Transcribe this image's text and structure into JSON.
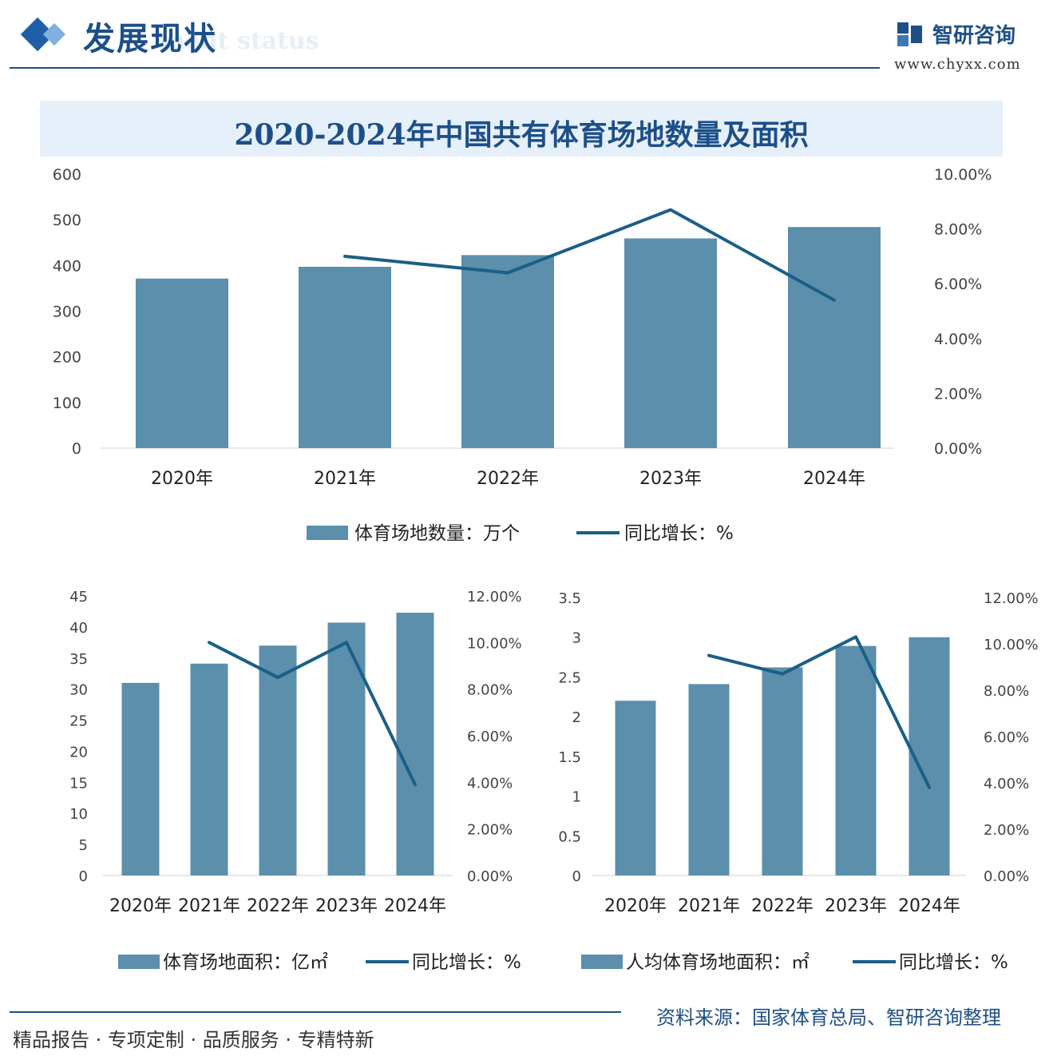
{
  "header": {
    "title": "发展现状",
    "subtitle_watermark": "ment status",
    "logo_name": "智研咨询",
    "logo_url": "www.chyxx.com"
  },
  "main_title": "2020-2024年中国共有体育场地数量及面积",
  "colors": {
    "bar": "#5b8fac",
    "line": "#1a5f87",
    "accent": "#1e4f86"
  },
  "chart_data": [
    {
      "type": "bar",
      "categories": [
        "2020年",
        "2021年",
        "2022年",
        "2023年",
        "2024年"
      ],
      "series": [
        {
          "name": "体育场地数量：万个",
          "type": "bar",
          "axis": "left",
          "values": [
            371.3,
            397.1,
            422.7,
            459.3,
            484.2
          ]
        },
        {
          "name": "同比增长：%",
          "type": "line",
          "axis": "right",
          "values": [
            null,
            7.0,
            6.4,
            8.7,
            5.4
          ]
        }
      ],
      "yleft": {
        "ticks": [
          "0",
          "100",
          "200",
          "300",
          "400",
          "500",
          "600"
        ],
        "min": 0,
        "max": 600
      },
      "yright": {
        "ticks": [
          "0.00%",
          "2.00%",
          "4.00%",
          "6.00%",
          "8.00%",
          "10.00%"
        ],
        "min": 0,
        "max": 10
      }
    },
    {
      "type": "bar",
      "categories": [
        "2020年",
        "2021年",
        "2022年",
        "2023年",
        "2024年"
      ],
      "series": [
        {
          "name": "体育场地面积：亿㎡",
          "type": "bar",
          "axis": "left",
          "values": [
            31.0,
            34.1,
            37.0,
            40.7,
            42.3
          ]
        },
        {
          "name": "同比增长：%",
          "type": "line",
          "axis": "right",
          "values": [
            null,
            10.0,
            8.5,
            10.0,
            3.9
          ]
        }
      ],
      "yleft": {
        "ticks": [
          "0",
          "5",
          "10",
          "15",
          "20",
          "25",
          "30",
          "35",
          "40",
          "45"
        ],
        "min": 0,
        "max": 45
      },
      "yright": {
        "ticks": [
          "0.00%",
          "2.00%",
          "4.00%",
          "6.00%",
          "8.00%",
          "10.00%",
          "12.00%"
        ],
        "min": 0,
        "max": 12
      }
    },
    {
      "type": "bar",
      "categories": [
        "2020年",
        "2021年",
        "2022年",
        "2023年",
        "2024年"
      ],
      "series": [
        {
          "name": "人均体育场地面积：㎡",
          "type": "bar",
          "axis": "left",
          "values": [
            2.2,
            2.41,
            2.62,
            2.89,
            3.0
          ]
        },
        {
          "name": "同比增长：%",
          "type": "line",
          "axis": "right",
          "values": [
            null,
            9.5,
            8.7,
            10.3,
            3.8
          ]
        }
      ],
      "yleft": {
        "ticks": [
          "0",
          "0.5",
          "1",
          "1.5",
          "2",
          "2.5",
          "3",
          "3.5"
        ],
        "min": 0,
        "max": 3.5
      },
      "yright": {
        "ticks": [
          "0.00%",
          "2.00%",
          "4.00%",
          "6.00%",
          "8.00%",
          "10.00%",
          "12.00%"
        ],
        "min": 0,
        "max": 12
      }
    }
  ],
  "footer": {
    "left": "精品报告 · 专项定制 · 品质服务 · 专精特新",
    "source": "资料来源：国家体育总局、智研咨询整理"
  }
}
